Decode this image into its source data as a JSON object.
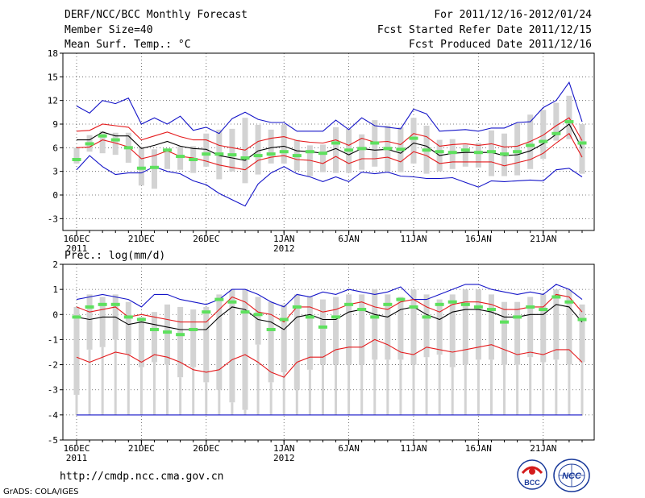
{
  "header": {
    "title": "DERF/NCC/BCC Monthly Forecast",
    "member_size": "Member Size=40",
    "variable": "Mean Surf. Temp.: °C",
    "period": "For 2011/12/16-2012/01/24",
    "started": "Fcst Started Refer Date 2011/12/15",
    "produced": "Fcst Produced Date 2011/12/16"
  },
  "footer": {
    "url": "http://cmdp.ncc.cma.gov.cn",
    "credit": "GrADS: COLA/IGES",
    "logo_left_text": "BCC",
    "logo_right_text": "NCC"
  },
  "colors": {
    "box": "#d3d3d3",
    "median": "#5ee05e",
    "mean": "#000000",
    "sd": "#e41a1c",
    "extreme": "#1414c8"
  },
  "chart_data": [
    {
      "type": "box",
      "title": "Mean Surf. Temp.: °C",
      "ylim": [
        -4.5,
        18
      ],
      "yticks": [
        -3,
        0,
        3,
        6,
        9,
        12,
        15,
        18
      ],
      "xtick_labels": [
        "16DEC",
        "21DEC",
        "26DEC",
        "1JAN",
        "6JAN",
        "11JAN",
        "16JAN",
        "21JAN"
      ],
      "xtick_days": [
        0,
        5,
        10,
        16,
        21,
        26,
        31,
        36
      ],
      "year_labels": [
        "2011",
        "2012"
      ],
      "days": 40,
      "series": [
        {
          "name": "box_top",
          "values": [
            6.0,
            7.6,
            8.1,
            7.9,
            7.9,
            6.1,
            5.8,
            5.9,
            6.2,
            6.2,
            7.8,
            8.3,
            8.4,
            9.8,
            8.9,
            8.3,
            8.9,
            7.0,
            6.3,
            6.4,
            8.6,
            8.4,
            7.7,
            9.5,
            8.8,
            8.6,
            9.8,
            8.8,
            7.0,
            7.1,
            6.4,
            6.6,
            8.2,
            7.8,
            9.1,
            10.2,
            10.8,
            11.7,
            12.6,
            9.0
          ]
        },
        {
          "name": "box_bottom",
          "values": [
            4.0,
            5.5,
            5.3,
            5.1,
            4.1,
            1.2,
            0.8,
            3.3,
            3.2,
            2.8,
            3.6,
            2.0,
            3.0,
            1.5,
            2.6,
            4.0,
            4.0,
            3.1,
            2.4,
            2.9,
            2.8,
            2.8,
            3.2,
            3.6,
            3.0,
            2.9,
            4.0,
            2.7,
            3.0,
            3.3,
            3.6,
            3.5,
            2.4,
            2.4,
            2.5,
            3.3,
            4.6,
            6.9,
            7.1,
            2.7
          ]
        },
        {
          "name": "median",
          "values": [
            4.5,
            6.5,
            7.5,
            7.0,
            6.0,
            3.4,
            3.5,
            5.7,
            4.9,
            4.5,
            5.2,
            5.2,
            5.1,
            4.7,
            5.0,
            5.2,
            5.5,
            5.0,
            5.5,
            5.3,
            6.6,
            5.7,
            5.9,
            6.6,
            5.9,
            5.8,
            7.2,
            5.7,
            5.5,
            5.4,
            5.7,
            5.4,
            5.5,
            5.2,
            5.5,
            6.3,
            6.8,
            7.8,
            9.3,
            6.6
          ]
        },
        {
          "name": "ens_mean",
          "values": [
            7.0,
            7.0,
            8.0,
            7.5,
            7.5,
            5.9,
            6.3,
            6.8,
            6.2,
            5.9,
            5.8,
            5.0,
            4.7,
            4.4,
            5.6,
            6.0,
            6.2,
            5.6,
            5.5,
            5.3,
            5.9,
            5.1,
            5.9,
            5.7,
            5.8,
            5.3,
            6.6,
            6.2,
            5.0,
            5.3,
            5.4,
            5.4,
            5.4,
            5.0,
            5.1,
            5.6,
            6.5,
            7.7,
            9.0,
            5.9
          ]
        },
        {
          "name": "plus_sd",
          "values": [
            8.1,
            8.2,
            9.0,
            8.8,
            8.6,
            7.0,
            7.5,
            8.0,
            7.4,
            7.0,
            7.0,
            6.3,
            6.0,
            5.7,
            6.8,
            7.2,
            7.4,
            6.9,
            6.7,
            6.6,
            7.0,
            6.3,
            7.2,
            6.7,
            6.8,
            6.4,
            7.8,
            7.4,
            6.2,
            6.4,
            6.5,
            6.3,
            6.5,
            6.1,
            6.2,
            6.8,
            7.6,
            8.8,
            9.8,
            6.9
          ]
        },
        {
          "name": "minus_sd",
          "values": [
            6.0,
            6.1,
            7.0,
            6.6,
            6.1,
            4.6,
            5.0,
            5.6,
            4.9,
            4.7,
            4.3,
            3.8,
            3.5,
            3.2,
            4.4,
            4.8,
            5.0,
            4.5,
            4.4,
            4.0,
            4.9,
            4.0,
            4.6,
            4.6,
            4.8,
            4.2,
            5.5,
            5.0,
            4.0,
            4.2,
            4.2,
            4.2,
            4.2,
            3.7,
            4.1,
            4.5,
            5.3,
            6.6,
            7.8,
            4.8
          ]
        },
        {
          "name": "maximum",
          "values": [
            11.3,
            10.4,
            12.0,
            11.6,
            12.3,
            9.0,
            9.8,
            9.0,
            10.0,
            8.2,
            8.6,
            7.8,
            9.7,
            10.5,
            9.6,
            9.2,
            9.2,
            8.1,
            8.1,
            8.1,
            9.5,
            8.3,
            9.8,
            8.8,
            8.6,
            8.4,
            10.9,
            10.3,
            8.1,
            8.2,
            8.3,
            8.1,
            8.5,
            8.5,
            9.2,
            9.3,
            11.1,
            12.0,
            14.3,
            9.3
          ]
        },
        {
          "name": "minimum",
          "values": [
            3.2,
            5.0,
            3.6,
            2.6,
            2.8,
            2.8,
            3.6,
            3.0,
            2.7,
            1.8,
            1.3,
            0.2,
            -0.6,
            -1.4,
            1.4,
            2.8,
            3.6,
            2.7,
            2.3,
            1.7,
            2.3,
            1.7,
            2.9,
            2.7,
            2.9,
            2.4,
            2.3,
            2.1,
            2.1,
            2.2,
            1.6,
            1.0,
            1.8,
            1.7,
            1.8,
            1.9,
            1.8,
            3.2,
            3.4,
            2.3
          ]
        }
      ]
    },
    {
      "type": "box",
      "title": "Prec.: log(mm/d)",
      "ylim": [
        -5,
        2
      ],
      "yticks": [
        -5,
        -4,
        -3,
        -2,
        -1,
        0,
        1,
        2
      ],
      "xtick_labels": [
        "16DEC",
        "21DEC",
        "26DEC",
        "1JAN",
        "6JAN",
        "11JAN",
        "16JAN",
        "21JAN"
      ],
      "xtick_days": [
        0,
        5,
        10,
        16,
        21,
        26,
        31,
        36
      ],
      "year_labels": [
        "2011",
        "2012"
      ],
      "days": 40,
      "series": [
        {
          "name": "box_top",
          "values": [
            0.3,
            0.8,
            0.7,
            0.8,
            0.5,
            -0.1,
            0.1,
            0.4,
            0.3,
            0.2,
            0.3,
            0.8,
            1.0,
            1.0,
            0.7,
            0.5,
            0.4,
            0.8,
            0.7,
            0.6,
            0.7,
            0.8,
            0.8,
            1.0,
            0.8,
            0.7,
            1.0,
            0.8,
            0.6,
            0.8,
            1.0,
            1.0,
            0.8,
            0.5,
            0.5,
            0.7,
            0.8,
            1.0,
            1.0,
            0.4
          ]
        },
        {
          "name": "box_bottom",
          "values": [
            -3.2,
            -1.4,
            -1.3,
            -1.0,
            -1.6,
            -2.1,
            -1.9,
            -2.0,
            -2.5,
            -2.1,
            -2.7,
            -3.0,
            -3.5,
            -3.8,
            -1.2,
            -2.7,
            -2.3,
            -3.0,
            -2.2,
            -2.0,
            -2.0,
            -2.0,
            -2.0,
            -1.8,
            -1.8,
            -1.8,
            -2.0,
            -1.7,
            -1.6,
            -2.1,
            -2.0,
            -1.8,
            -1.8,
            -2.0,
            -2.0,
            -1.7,
            -1.9,
            -1.8,
            -2.0,
            -1.9
          ]
        },
        {
          "name": "whisker_low",
          "values": [
            -4.0,
            -4.0,
            -4.0,
            -4.0,
            -4.0,
            -4.0,
            -4.0,
            -4.0,
            -4.0,
            -4.0,
            -4.0,
            -4.0,
            -4.0,
            -4.0,
            -4.0,
            -4.0,
            -4.0,
            -4.0,
            -4.0,
            -4.0,
            -4.0,
            -4.0,
            -4.0,
            -4.0,
            -4.0,
            -4.0,
            -4.0,
            -4.0,
            -4.0,
            -4.0,
            -4.0,
            -4.0,
            -4.0,
            -4.0,
            -4.0,
            -4.0,
            -4.0,
            -4.0,
            -4.0,
            -4.0
          ]
        },
        {
          "name": "median",
          "values": [
            -0.1,
            0.3,
            0.4,
            0.4,
            -0.1,
            -0.2,
            -0.6,
            -0.7,
            -0.8,
            -0.6,
            0.1,
            0.6,
            0.5,
            0.1,
            0.0,
            -0.6,
            -0.2,
            0.3,
            -0.1,
            -0.5,
            -0.1,
            0.4,
            0.2,
            -0.1,
            0.4,
            0.6,
            0.3,
            -0.1,
            0.4,
            0.5,
            0.4,
            0.3,
            0.2,
            -0.3,
            -0.1,
            0.3,
            0.2,
            0.7,
            0.5,
            -0.2
          ]
        },
        {
          "name": "ens_mean",
          "values": [
            -0.1,
            -0.2,
            -0.1,
            -0.1,
            -0.4,
            -0.3,
            -0.4,
            -0.5,
            -0.6,
            -0.6,
            -0.6,
            -0.1,
            0.3,
            0.2,
            -0.2,
            -0.3,
            -0.6,
            -0.1,
            0.0,
            -0.2,
            -0.2,
            0.1,
            0.2,
            0.0,
            -0.1,
            0.2,
            0.3,
            0.0,
            -0.2,
            0.1,
            0.2,
            0.2,
            0.1,
            -0.1,
            -0.1,
            0.0,
            0.0,
            0.4,
            0.3,
            -0.3
          ]
        },
        {
          "name": "plus_sd",
          "values": [
            0.3,
            0.1,
            0.2,
            0.3,
            -0.1,
            0.0,
            -0.1,
            -0.2,
            -0.3,
            -0.3,
            -0.3,
            0.2,
            0.7,
            0.5,
            0.1,
            0.0,
            -0.3,
            0.3,
            0.3,
            0.1,
            0.2,
            0.4,
            0.5,
            0.3,
            0.2,
            0.5,
            0.6,
            0.3,
            0.1,
            0.4,
            0.5,
            0.5,
            0.4,
            0.2,
            0.2,
            0.3,
            0.3,
            0.8,
            0.7,
            0.1
          ]
        },
        {
          "name": "minus_sd",
          "values": [
            -1.7,
            -1.9,
            -1.7,
            -1.5,
            -1.6,
            -1.9,
            -1.6,
            -1.7,
            -1.9,
            -2.2,
            -2.3,
            -2.2,
            -1.8,
            -1.6,
            -1.9,
            -2.3,
            -2.5,
            -1.9,
            -1.7,
            -1.7,
            -1.4,
            -1.3,
            -1.3,
            -1.0,
            -1.2,
            -1.5,
            -1.6,
            -1.3,
            -1.4,
            -1.5,
            -1.4,
            -1.3,
            -1.2,
            -1.4,
            -1.6,
            -1.5,
            -1.6,
            -1.4,
            -1.4,
            -1.9
          ]
        },
        {
          "name": "maximum",
          "values": [
            0.6,
            0.7,
            0.8,
            0.7,
            0.6,
            0.3,
            0.8,
            0.8,
            0.6,
            0.5,
            0.4,
            0.6,
            1.0,
            1.0,
            0.8,
            0.5,
            0.3,
            0.8,
            0.7,
            0.9,
            0.8,
            1.0,
            0.9,
            0.8,
            0.9,
            1.1,
            0.6,
            0.6,
            0.8,
            1.0,
            1.2,
            1.2,
            1.0,
            0.9,
            0.8,
            0.9,
            0.8,
            1.2,
            1.0,
            0.6
          ]
        },
        {
          "name": "minimum",
          "values": [
            -4.0,
            -4.0,
            -4.0,
            -4.0,
            -4.0,
            -4.0,
            -4.0,
            -4.0,
            -4.0,
            -4.0,
            -4.0,
            -4.0,
            -4.0,
            -4.0,
            -4.0,
            -4.0,
            -4.0,
            -4.0,
            -4.0,
            -4.0,
            -4.0,
            -4.0,
            -4.0,
            -4.0,
            -4.0,
            -4.0,
            -4.0,
            -4.0,
            -4.0,
            -4.0,
            -4.0,
            -4.0,
            -4.0,
            -4.0,
            -4.0,
            -4.0,
            -4.0,
            -4.0,
            -4.0,
            -4.0
          ]
        }
      ]
    }
  ]
}
